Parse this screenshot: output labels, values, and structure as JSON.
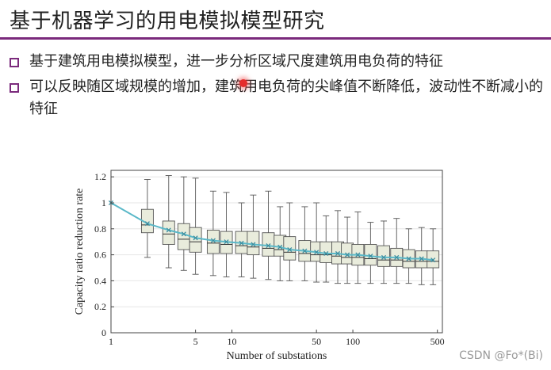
{
  "slide": {
    "title": "基于机器学习的用电模拟模型研究",
    "bullets": [
      "基于建筑用电模拟模型，进一步分析区域尺度建筑用电负荷的特征",
      "可以反映随区域规模的增加，建筑用电负荷的尖峰值不断降低，波动性不断减小的特征"
    ],
    "accent_color": "#7b2a7c",
    "pointer_color": "#e52d2d"
  },
  "watermark": "CSDN @Fo*(Bi)",
  "chart_data": {
    "type": "box",
    "title": "",
    "xlabel": "Number of substations",
    "ylabel": "Capacity ratio reduction rate",
    "x_scale": "log",
    "xlim": [
      1,
      550
    ],
    "ylim": [
      0,
      1.25
    ],
    "xticks": [
      1,
      5,
      10,
      50,
      100,
      500
    ],
    "xtick_labels": [
      "1",
      "5",
      "10",
      "50",
      "100",
      "500"
    ],
    "yticks": [
      0,
      0.2,
      0.4,
      0.6,
      0.8,
      1.0,
      1.2
    ],
    "ytick_labels": [
      "0",
      "0.2",
      "0.4",
      "0.6",
      "0.8",
      "1",
      "1.2"
    ],
    "grid": "horizontal",
    "box_color": "#e9ecdc",
    "mean_line_color": "#5ab8c8",
    "boxes": [
      {
        "x": 2,
        "whisker_low": 0.58,
        "q1": 0.77,
        "median": 0.83,
        "q3": 0.95,
        "whisker_high": 1.18,
        "mean": 0.84
      },
      {
        "x": 3,
        "whisker_low": 0.5,
        "q1": 0.68,
        "median": 0.76,
        "q3": 0.86,
        "whisker_high": 1.21,
        "mean": 0.79
      },
      {
        "x": 4,
        "whisker_low": 0.48,
        "q1": 0.64,
        "median": 0.72,
        "q3": 0.84,
        "whisker_high": 1.2,
        "mean": 0.76
      },
      {
        "x": 5,
        "whisker_low": 0.45,
        "q1": 0.62,
        "median": 0.7,
        "q3": 0.81,
        "whisker_high": 1.19,
        "mean": 0.73
      },
      {
        "x": 7,
        "whisker_low": 0.44,
        "q1": 0.61,
        "median": 0.69,
        "q3": 0.79,
        "whisker_high": 1.09,
        "mean": 0.71
      },
      {
        "x": 9,
        "whisker_low": 0.43,
        "q1": 0.61,
        "median": 0.68,
        "q3": 0.78,
        "whisker_high": 1.08,
        "mean": 0.7
      },
      {
        "x": 12,
        "whisker_low": 0.43,
        "q1": 0.61,
        "median": 0.67,
        "q3": 0.78,
        "whisker_high": 1.0,
        "mean": 0.69
      },
      {
        "x": 15,
        "whisker_low": 0.42,
        "q1": 0.6,
        "median": 0.66,
        "q3": 0.78,
        "whisker_high": 1.06,
        "mean": 0.68
      },
      {
        "x": 20,
        "whisker_low": 0.41,
        "q1": 0.59,
        "median": 0.65,
        "q3": 0.77,
        "whisker_high": 1.09,
        "mean": 0.67
      },
      {
        "x": 25,
        "whisker_low": 0.4,
        "q1": 0.59,
        "median": 0.64,
        "q3": 0.75,
        "whisker_high": 0.97,
        "mean": 0.66
      },
      {
        "x": 30,
        "whisker_low": 0.4,
        "q1": 0.56,
        "median": 0.62,
        "q3": 0.74,
        "whisker_high": 1.0,
        "mean": 0.64
      },
      {
        "x": 40,
        "whisker_low": 0.4,
        "q1": 0.55,
        "median": 0.61,
        "q3": 0.71,
        "whisker_high": 0.97,
        "mean": 0.63
      },
      {
        "x": 50,
        "whisker_low": 0.39,
        "q1": 0.55,
        "median": 0.6,
        "q3": 0.7,
        "whisker_high": 1.0,
        "mean": 0.62
      },
      {
        "x": 60,
        "whisker_low": 0.39,
        "q1": 0.54,
        "median": 0.6,
        "q3": 0.7,
        "whisker_high": 0.9,
        "mean": 0.61
      },
      {
        "x": 75,
        "whisker_low": 0.38,
        "q1": 0.53,
        "median": 0.59,
        "q3": 0.7,
        "whisker_high": 0.94,
        "mean": 0.61
      },
      {
        "x": 90,
        "whisker_low": 0.38,
        "q1": 0.53,
        "median": 0.58,
        "q3": 0.69,
        "whisker_high": 0.89,
        "mean": 0.6
      },
      {
        "x": 110,
        "whisker_low": 0.38,
        "q1": 0.52,
        "median": 0.58,
        "q3": 0.68,
        "whisker_high": 0.93,
        "mean": 0.6
      },
      {
        "x": 140,
        "whisker_low": 0.38,
        "q1": 0.52,
        "median": 0.57,
        "q3": 0.68,
        "whisker_high": 0.85,
        "mean": 0.59
      },
      {
        "x": 180,
        "whisker_low": 0.38,
        "q1": 0.51,
        "median": 0.56,
        "q3": 0.67,
        "whisker_high": 0.86,
        "mean": 0.58
      },
      {
        "x": 230,
        "whisker_low": 0.38,
        "q1": 0.51,
        "median": 0.56,
        "q3": 0.65,
        "whisker_high": 0.88,
        "mean": 0.58
      },
      {
        "x": 290,
        "whisker_low": 0.38,
        "q1": 0.5,
        "median": 0.55,
        "q3": 0.64,
        "whisker_high": 0.8,
        "mean": 0.57
      },
      {
        "x": 370,
        "whisker_low": 0.37,
        "q1": 0.5,
        "median": 0.55,
        "q3": 0.63,
        "whisker_high": 0.81,
        "mean": 0.57
      },
      {
        "x": 460,
        "whisker_low": 0.37,
        "q1": 0.5,
        "median": 0.55,
        "q3": 0.63,
        "whisker_high": 0.8,
        "mean": 0.56
      }
    ],
    "mean_series": {
      "name": "mean",
      "x": [
        1,
        2,
        3,
        4,
        5,
        7,
        9,
        12,
        15,
        20,
        25,
        30,
        40,
        50,
        60,
        75,
        90,
        110,
        140,
        180,
        230,
        290,
        370,
        460
      ],
      "y": [
        1.0,
        0.84,
        0.79,
        0.76,
        0.73,
        0.71,
        0.7,
        0.69,
        0.68,
        0.67,
        0.66,
        0.64,
        0.63,
        0.62,
        0.61,
        0.61,
        0.6,
        0.6,
        0.59,
        0.58,
        0.58,
        0.57,
        0.57,
        0.56
      ]
    }
  }
}
